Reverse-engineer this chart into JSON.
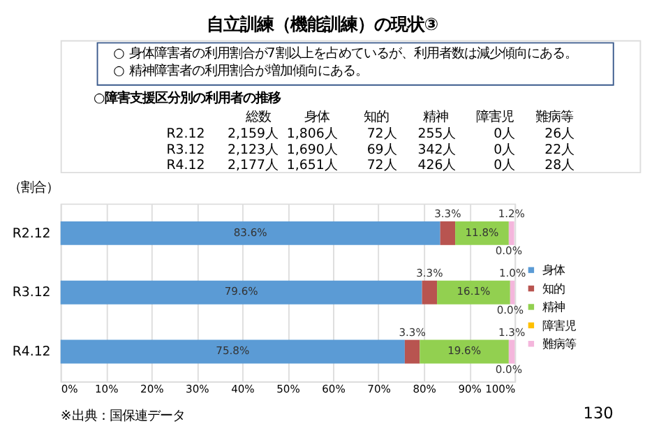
{
  "chart_data": {
    "type": "bar",
    "title": "自立訓練（機能訓練）の現状③",
    "orientation": "horizontal",
    "stacked": true,
    "categories": [
      "R2.12",
      "R3.12",
      "R4.12"
    ],
    "ylabel": "（割合）",
    "series": [
      {
        "name": "身体",
        "color": "#5b9bd5",
        "values": [
          83.6,
          79.6,
          75.8
        ],
        "value_labels": [
          "83.6%",
          "79.6%",
          "75.8%"
        ]
      },
      {
        "name": "知的",
        "color": "#b85450",
        "values": [
          3.3,
          3.3,
          3.3
        ],
        "value_labels": [
          "3.3%",
          "3.3%",
          "3.3%"
        ]
      },
      {
        "name": "精神",
        "color": "#92d050",
        "values": [
          11.8,
          16.1,
          19.6
        ],
        "value_labels": [
          "11.8%",
          "16.1%",
          "19.6%"
        ]
      },
      {
        "name": "障害児",
        "color": "#ffc000",
        "values": [
          0.0,
          0.0,
          0.0
        ],
        "value_labels": [
          "0.0%",
          "0.0%",
          "0.0%"
        ]
      },
      {
        "name": "難病等",
        "color": "#f4b6dc",
        "values": [
          1.2,
          1.0,
          1.3
        ],
        "value_labels": [
          "1.2%",
          "1.0%",
          "1.3%"
        ]
      }
    ],
    "xlim": [
      0,
      100
    ],
    "xticks": [
      {
        "value": 0,
        "label": "0%"
      },
      {
        "value": 10,
        "label": "10%"
      },
      {
        "value": 20,
        "label": "20%"
      },
      {
        "value": 30,
        "label": "30%"
      },
      {
        "value": 40,
        "label": "40%"
      },
      {
        "value": 50,
        "label": "50%"
      },
      {
        "value": 60,
        "label": "60%"
      },
      {
        "value": 70,
        "label": "70%"
      },
      {
        "value": 80,
        "label": "80%"
      },
      {
        "value": 90,
        "label": "90%"
      },
      {
        "value": 100,
        "label": "100%"
      }
    ],
    "grid": "x",
    "legend": "right",
    "annotations": [
      "○ 身体障害者の利用割合が7割以上を占めているが、利用者数は減少傾向にある。",
      "○ 精神障害者の利用割合が増加傾向にある。",
      "○障害支援区分別の利用者の推移",
      "総数",
      "身体",
      "知的",
      "精神",
      "障害児",
      "難病等",
      "R2.12",
      "2,159人",
      "1,806人",
      "72人",
      "255人",
      "0人",
      "26人",
      "R3.12",
      "2,123人",
      "1,690人",
      "69人",
      "342人",
      "0人",
      "22人",
      "R4.12",
      "2,177人",
      "1,651人",
      "72人",
      "426人",
      "0人",
      "28人",
      "※出典：国保連データ",
      "130"
    ]
  }
}
